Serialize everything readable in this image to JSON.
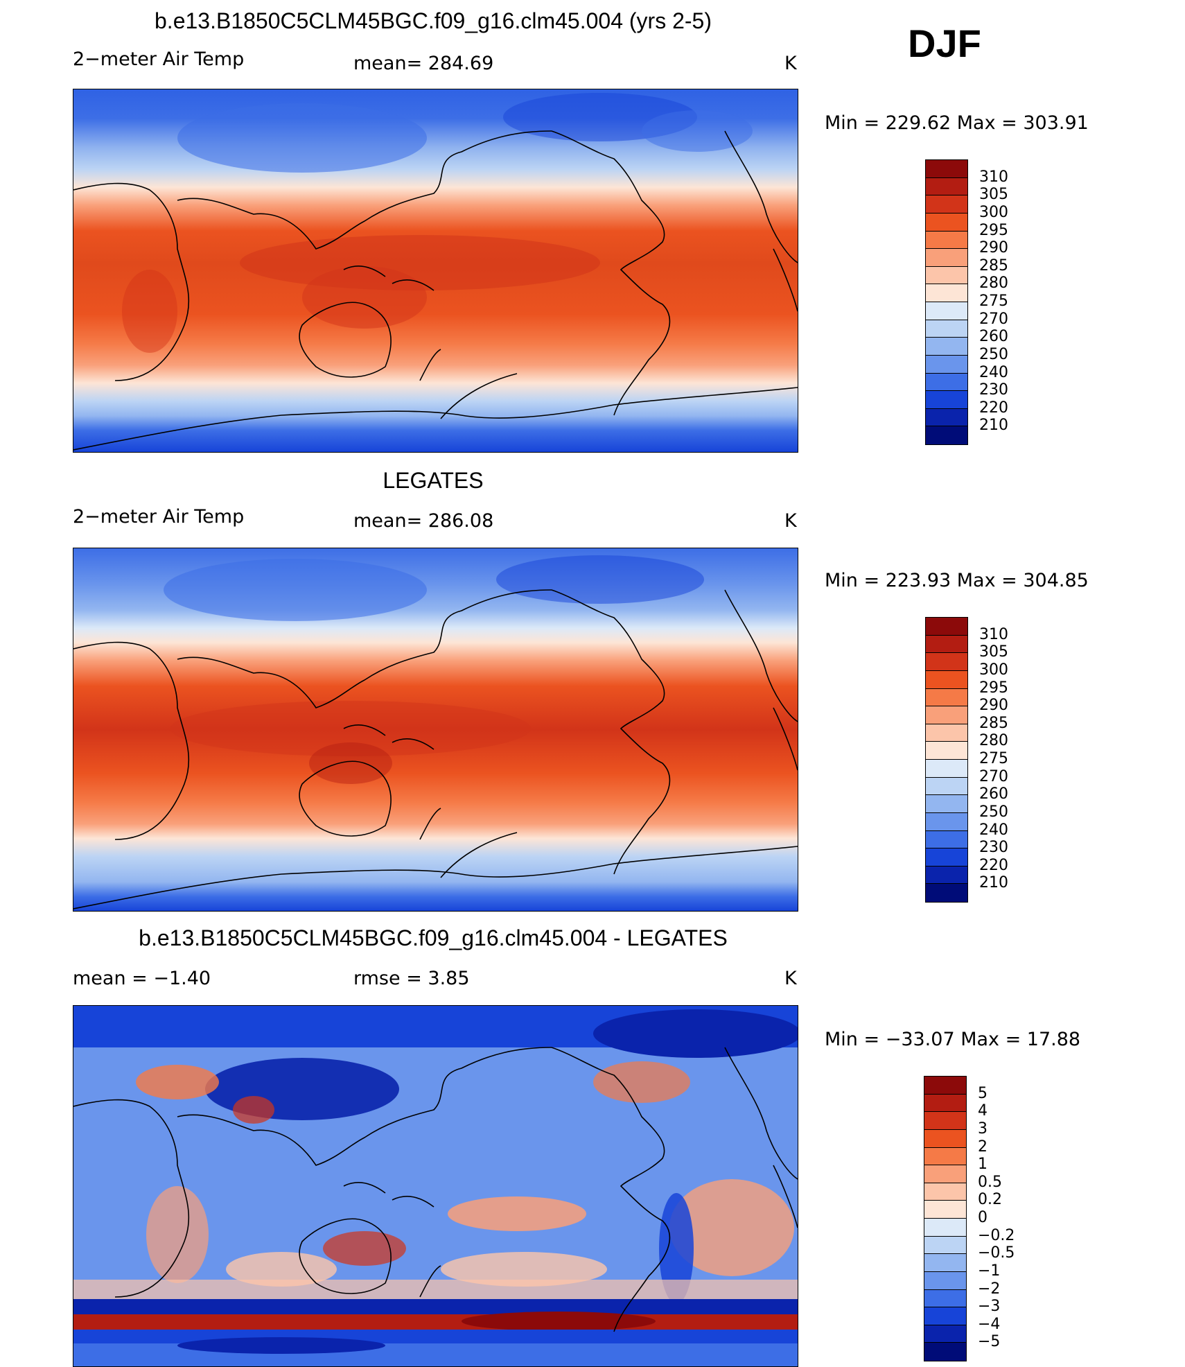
{
  "season": "DJF",
  "units": "K",
  "panels": [
    {
      "title": "b.e13.B1850C5CLM45BGC.f09_g16.clm45.004 (yrs 2-5)",
      "left_text": "2−meter Air Temp",
      "center_text": "mean=  284.69",
      "units": "K",
      "minmax": "Min  =  229.62  Max  =  303.91",
      "colorbar": {
        "labels": [
          "310",
          "305",
          "300",
          "295",
          "290",
          "285",
          "280",
          "275",
          "270",
          "260",
          "250",
          "240",
          "230",
          "220",
          "210"
        ],
        "colors": [
          "#8c0a0a",
          "#b31d12",
          "#d23419",
          "#eb5320",
          "#f57a47",
          "#f9a07a",
          "#fcc5aa",
          "#fde5d6",
          "#dce9f8",
          "#bcd4f4",
          "#93b6f0",
          "#6a95ec",
          "#3d6ee6",
          "#1744d8",
          "#0a23ac",
          "#000c78"
        ]
      }
    },
    {
      "title": "LEGATES",
      "left_text": "2−meter Air Temp",
      "center_text": "mean=  286.08",
      "units": "K",
      "minmax": "Min  =  223.93  Max  =  304.85",
      "colorbar": {
        "labels": [
          "310",
          "305",
          "300",
          "295",
          "290",
          "285",
          "280",
          "275",
          "270",
          "260",
          "250",
          "240",
          "230",
          "220",
          "210"
        ],
        "colors": [
          "#8c0a0a",
          "#b31d12",
          "#d23419",
          "#eb5320",
          "#f57a47",
          "#f9a07a",
          "#fcc5aa",
          "#fde5d6",
          "#dce9f8",
          "#bcd4f4",
          "#93b6f0",
          "#6a95ec",
          "#3d6ee6",
          "#1744d8",
          "#0a23ac",
          "#000c78"
        ]
      }
    },
    {
      "title": "b.e13.B1850C5CLM45BGC.f09_g16.clm45.004 - LEGATES",
      "left_text": "mean  =    −1.40",
      "center_text": "rmse  =      3.85",
      "units": "K",
      "minmax": "Min  =  −33.07  Max  =    17.88",
      "colorbar": {
        "labels": [
          "5",
          "4",
          "3",
          "2",
          "1",
          "0.5",
          "0.2",
          "0",
          "−0.2",
          "−0.5",
          "−1",
          "−2",
          "−3",
          "−4",
          "−5"
        ],
        "colors": [
          "#8c0a0a",
          "#b31d12",
          "#d23419",
          "#eb5320",
          "#f57a47",
          "#f9a07a",
          "#fcc5aa",
          "#fde5d6",
          "#dce9f8",
          "#bcd4f4",
          "#93b6f0",
          "#6a95ec",
          "#3d6ee6",
          "#1744d8",
          "#0a23ac",
          "#000c78"
        ]
      }
    }
  ]
}
